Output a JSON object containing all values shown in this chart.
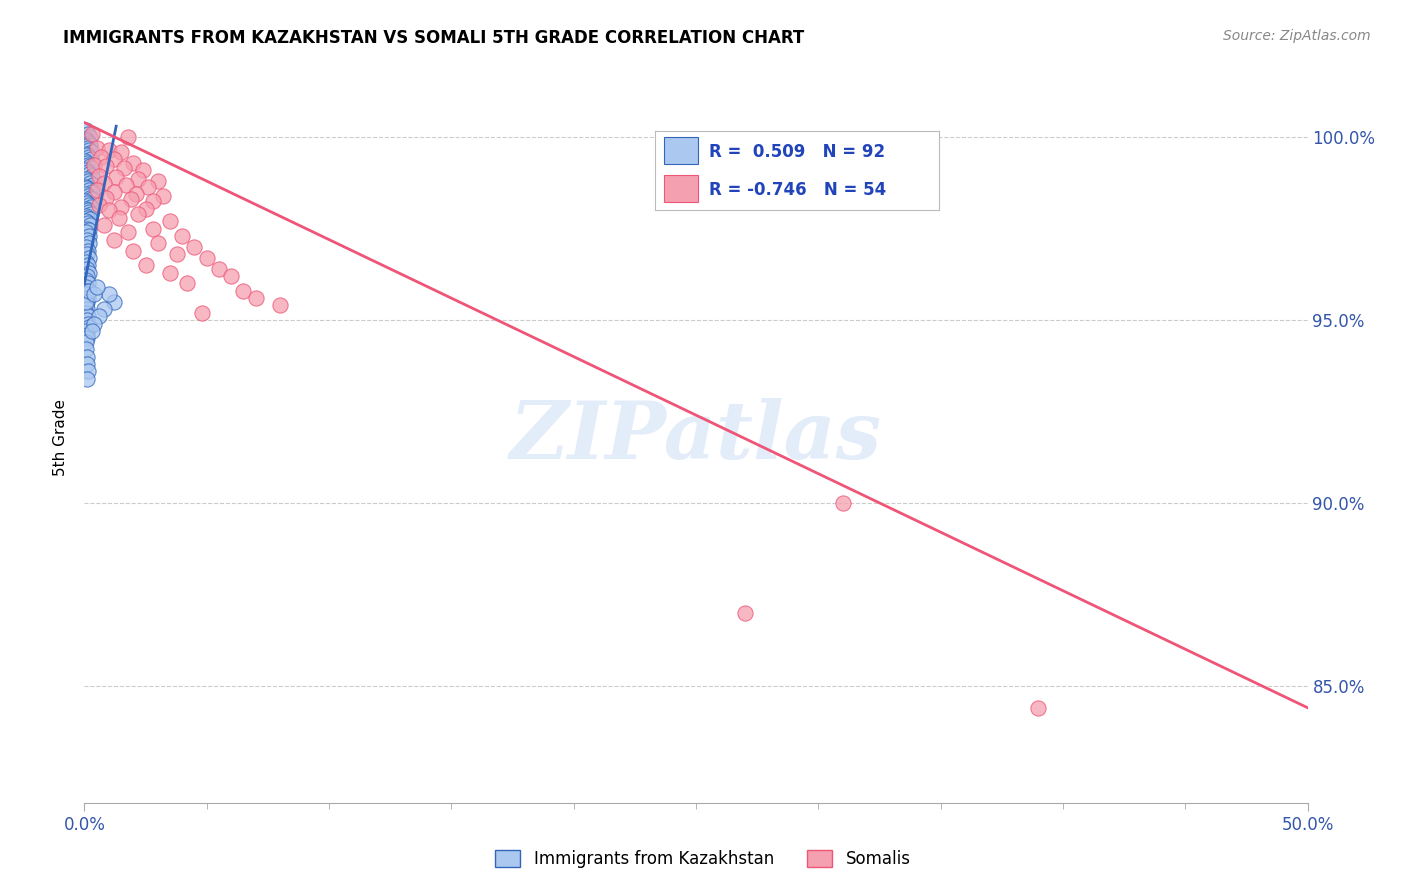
{
  "title": "IMMIGRANTS FROM KAZAKHSTAN VS SOMALI 5TH GRADE CORRELATION CHART",
  "source": "Source: ZipAtlas.com",
  "ylabel": "5th Grade",
  "ytick_labels": [
    "100.0%",
    "95.0%",
    "90.0%",
    "85.0%"
  ],
  "ytick_values": [
    1.0,
    0.95,
    0.9,
    0.85
  ],
  "xmin": 0.0,
  "xmax": 0.5,
  "ymin": 0.818,
  "ymax": 1.018,
  "color_blue": "#aac8f0",
  "color_pink": "#f5a0b0",
  "line_color_blue": "#3366bb",
  "line_color_pink": "#ee5577",
  "watermark": "ZIPatlas",
  "blue_points": [
    [
      0.0008,
      1.002
    ],
    [
      0.0015,
      1.001
    ],
    [
      0.0022,
      1.0
    ],
    [
      0.0005,
      0.9995
    ],
    [
      0.001,
      0.999
    ],
    [
      0.0018,
      0.9985
    ],
    [
      0.0025,
      0.998
    ],
    [
      0.0007,
      0.9975
    ],
    [
      0.0013,
      0.997
    ],
    [
      0.002,
      0.9965
    ],
    [
      0.003,
      0.996
    ],
    [
      0.0006,
      0.9955
    ],
    [
      0.0012,
      0.995
    ],
    [
      0.0019,
      0.9945
    ],
    [
      0.0028,
      0.994
    ],
    [
      0.0004,
      0.9935
    ],
    [
      0.001,
      0.993
    ],
    [
      0.0016,
      0.9925
    ],
    [
      0.0024,
      0.992
    ],
    [
      0.003,
      0.9915
    ],
    [
      0.0006,
      0.991
    ],
    [
      0.0014,
      0.9905
    ],
    [
      0.002,
      0.99
    ],
    [
      0.003,
      0.9895
    ],
    [
      0.0008,
      0.9885
    ],
    [
      0.0015,
      0.988
    ],
    [
      0.0025,
      0.9875
    ],
    [
      0.0035,
      0.987
    ],
    [
      0.0005,
      0.9865
    ],
    [
      0.0012,
      0.986
    ],
    [
      0.002,
      0.9855
    ],
    [
      0.003,
      0.985
    ],
    [
      0.0007,
      0.9845
    ],
    [
      0.0015,
      0.984
    ],
    [
      0.0022,
      0.9835
    ],
    [
      0.003,
      0.983
    ],
    [
      0.0004,
      0.9825
    ],
    [
      0.001,
      0.982
    ],
    [
      0.0018,
      0.9815
    ],
    [
      0.0026,
      0.981
    ],
    [
      0.0006,
      0.9805
    ],
    [
      0.0014,
      0.98
    ],
    [
      0.002,
      0.9795
    ],
    [
      0.0028,
      0.979
    ],
    [
      0.0005,
      0.9785
    ],
    [
      0.0012,
      0.978
    ],
    [
      0.0022,
      0.9775
    ],
    [
      0.0008,
      0.977
    ],
    [
      0.0016,
      0.9765
    ],
    [
      0.0024,
      0.976
    ],
    [
      0.001,
      0.975
    ],
    [
      0.002,
      0.9745
    ],
    [
      0.0007,
      0.974
    ],
    [
      0.0018,
      0.973
    ],
    [
      0.001,
      0.972
    ],
    [
      0.002,
      0.971
    ],
    [
      0.0005,
      0.97
    ],
    [
      0.0015,
      0.969
    ],
    [
      0.001,
      0.968
    ],
    [
      0.002,
      0.967
    ],
    [
      0.0006,
      0.966
    ],
    [
      0.0015,
      0.965
    ],
    [
      0.001,
      0.964
    ],
    [
      0.0018,
      0.963
    ],
    [
      0.001,
      0.962
    ],
    [
      0.0006,
      0.961
    ],
    [
      0.0015,
      0.96
    ],
    [
      0.0008,
      0.959
    ],
    [
      0.001,
      0.958
    ],
    [
      0.0005,
      0.957
    ],
    [
      0.0014,
      0.956
    ],
    [
      0.001,
      0.955
    ],
    [
      0.0006,
      0.954
    ],
    [
      0.001,
      0.953
    ],
    [
      0.0008,
      0.952
    ],
    [
      0.0016,
      0.951
    ],
    [
      0.001,
      0.95
    ],
    [
      0.0014,
      0.949
    ],
    [
      0.002,
      0.948
    ],
    [
      0.0008,
      0.947
    ],
    [
      0.001,
      0.946
    ],
    [
      0.0012,
      0.945
    ],
    [
      0.0005,
      0.944
    ],
    [
      0.0008,
      0.942
    ],
    [
      0.001,
      0.94
    ],
    [
      0.0012,
      0.938
    ],
    [
      0.0015,
      0.936
    ],
    [
      0.001,
      0.934
    ],
    [
      0.0006,
      0.955
    ],
    [
      0.0018,
      0.958
    ],
    [
      0.012,
      0.955
    ],
    [
      0.01,
      0.957
    ],
    [
      0.008,
      0.953
    ],
    [
      0.006,
      0.951
    ],
    [
      0.004,
      0.949
    ],
    [
      0.003,
      0.947
    ],
    [
      0.004,
      0.957
    ],
    [
      0.005,
      0.959
    ]
  ],
  "pink_points": [
    [
      0.003,
      1.001
    ],
    [
      0.018,
      1.0
    ],
    [
      0.005,
      0.997
    ],
    [
      0.01,
      0.9965
    ],
    [
      0.015,
      0.996
    ],
    [
      0.007,
      0.9945
    ],
    [
      0.012,
      0.994
    ],
    [
      0.02,
      0.993
    ],
    [
      0.004,
      0.9925
    ],
    [
      0.009,
      0.992
    ],
    [
      0.016,
      0.9915
    ],
    [
      0.024,
      0.991
    ],
    [
      0.006,
      0.9895
    ],
    [
      0.013,
      0.989
    ],
    [
      0.022,
      0.9885
    ],
    [
      0.03,
      0.988
    ],
    [
      0.008,
      0.9875
    ],
    [
      0.017,
      0.987
    ],
    [
      0.026,
      0.9865
    ],
    [
      0.005,
      0.9855
    ],
    [
      0.012,
      0.985
    ],
    [
      0.021,
      0.9845
    ],
    [
      0.032,
      0.984
    ],
    [
      0.009,
      0.9835
    ],
    [
      0.019,
      0.983
    ],
    [
      0.028,
      0.9825
    ],
    [
      0.006,
      0.9815
    ],
    [
      0.015,
      0.981
    ],
    [
      0.025,
      0.9805
    ],
    [
      0.01,
      0.98
    ],
    [
      0.022,
      0.979
    ],
    [
      0.014,
      0.978
    ],
    [
      0.035,
      0.977
    ],
    [
      0.008,
      0.976
    ],
    [
      0.028,
      0.975
    ],
    [
      0.018,
      0.974
    ],
    [
      0.04,
      0.973
    ],
    [
      0.012,
      0.972
    ],
    [
      0.03,
      0.971
    ],
    [
      0.045,
      0.97
    ],
    [
      0.02,
      0.969
    ],
    [
      0.038,
      0.968
    ],
    [
      0.05,
      0.967
    ],
    [
      0.025,
      0.965
    ],
    [
      0.055,
      0.964
    ],
    [
      0.035,
      0.963
    ],
    [
      0.06,
      0.962
    ],
    [
      0.042,
      0.96
    ],
    [
      0.065,
      0.958
    ],
    [
      0.07,
      0.956
    ],
    [
      0.08,
      0.954
    ],
    [
      0.048,
      0.952
    ],
    [
      0.31,
      0.9
    ],
    [
      0.27,
      0.87
    ],
    [
      0.39,
      0.844
    ]
  ],
  "blue_line_x": [
    0.0,
    0.013
  ],
  "blue_line_y": [
    0.96,
    1.003
  ],
  "pink_line_x": [
    0.0,
    0.5
  ],
  "pink_line_y": [
    1.004,
    0.844
  ]
}
